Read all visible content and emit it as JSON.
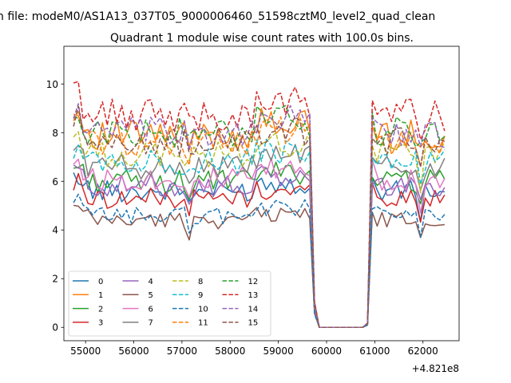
{
  "chart_data": {
    "type": "line",
    "suptitle": "n file: modeM0/AS1A13_037T05_9000006460_51598cztM0_level2_quad_clean",
    "title": "Quadrant 1 module wise count rates with 100.0s bins.",
    "xlabel": "",
    "ylabel": "",
    "x_offset_label": "+4.821e8",
    "xlim": [
      54550,
      62750
    ],
    "ylim": [
      -0.55,
      11.55
    ],
    "x_ticks": [
      {
        "value": 55000,
        "label": "55000"
      },
      {
        "value": 56000,
        "label": "56000"
      },
      {
        "value": 57000,
        "label": "57000"
      },
      {
        "value": 58000,
        "label": "58000"
      },
      {
        "value": 59000,
        "label": "59000"
      },
      {
        "value": 60000,
        "label": "60000"
      },
      {
        "value": 61000,
        "label": "61000"
      },
      {
        "value": 62000,
        "label": "62000"
      }
    ],
    "y_ticks": [
      {
        "value": 0,
        "label": "0"
      },
      {
        "value": 2,
        "label": "2"
      },
      {
        "value": 4,
        "label": "4"
      },
      {
        "value": 6,
        "label": "6"
      },
      {
        "value": 8,
        "label": "8"
      },
      {
        "value": 10,
        "label": "10"
      }
    ],
    "x_start": 54750,
    "x_step": 100,
    "legend_position": "lower-left",
    "legend_columns": 4,
    "series": [
      {
        "name": "0",
        "color": "#1f77b4",
        "dash": "solid",
        "base": 5.6
      },
      {
        "name": "1",
        "color": "#ff7f0e",
        "dash": "solid",
        "base": 7.9
      },
      {
        "name": "2",
        "color": "#2ca02c",
        "dash": "solid",
        "base": 6.0
      },
      {
        "name": "3",
        "color": "#d62728",
        "dash": "solid",
        "base": 5.3
      },
      {
        "name": "4",
        "color": "#9467bd",
        "dash": "solid",
        "base": 5.8
      },
      {
        "name": "5",
        "color": "#8c564b",
        "dash": "solid",
        "base": 4.4
      },
      {
        "name": "6",
        "color": "#e377c2",
        "dash": "solid",
        "base": 6.1
      },
      {
        "name": "7",
        "color": "#7f7f7f",
        "dash": "solid",
        "base": 6.6
      },
      {
        "name": "8",
        "color": "#bcbd22",
        "dash": "dashed",
        "base": 7.1
      },
      {
        "name": "9",
        "color": "#17becf",
        "dash": "dashed",
        "base": 6.8
      },
      {
        "name": "10",
        "color": "#1f77b4",
        "dash": "dashed",
        "base": 4.6
      },
      {
        "name": "11",
        "color": "#ff7f0e",
        "dash": "dashed",
        "base": 7.6
      },
      {
        "name": "12",
        "color": "#2ca02c",
        "dash": "dashed",
        "base": 8.0
      },
      {
        "name": "13",
        "color": "#d62728",
        "dash": "dashed",
        "base": 8.7
      },
      {
        "name": "14",
        "color": "#9467bd",
        "dash": "dashed",
        "base": 8.0
      },
      {
        "name": "15",
        "color": "#8c564b",
        "dash": "dashed",
        "base": 7.6
      }
    ]
  }
}
